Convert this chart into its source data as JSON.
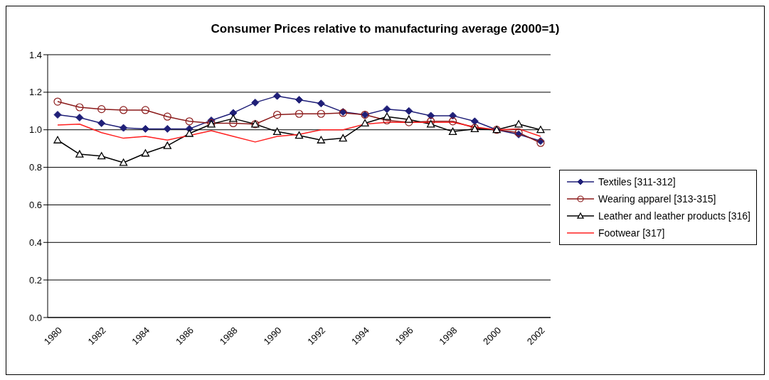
{
  "chart_data": {
    "type": "line",
    "title": "Consumer Prices relative to manufacturing average (2000=1)",
    "categories": [
      "1980",
      null,
      "1982",
      null,
      "1984",
      null,
      "1986",
      null,
      "1988",
      null,
      "1990",
      null,
      "1992",
      null,
      "1994",
      null,
      "1996",
      null,
      "1998",
      null,
      "2000",
      null,
      "2002"
    ],
    "series": [
      {
        "name": "Textiles [311-312]",
        "color": "#1f1f78",
        "marker": "diamond",
        "values": [
          1.08,
          1.065,
          1.035,
          1.01,
          1.005,
          1.005,
          1.005,
          1.05,
          1.09,
          1.145,
          1.18,
          1.16,
          1.14,
          1.095,
          1.08,
          1.11,
          1.1,
          1.075,
          1.075,
          1.045,
          1.0,
          0.975,
          0.94
        ]
      },
      {
        "name": "Wearing apparel [313-315]",
        "color": "#8b1a1a",
        "marker": "circle",
        "values": [
          1.15,
          1.12,
          1.11,
          1.105,
          1.105,
          1.07,
          1.045,
          1.035,
          1.035,
          1.03,
          1.08,
          1.085,
          1.085,
          1.09,
          1.08,
          1.05,
          1.04,
          1.045,
          1.045,
          1.01,
          1.0,
          0.985,
          0.93
        ]
      },
      {
        "name": "Leather and leather products [316]",
        "color": "#000000",
        "marker": "triangle",
        "values": [
          0.945,
          0.87,
          0.86,
          0.825,
          0.875,
          0.915,
          0.98,
          1.03,
          1.06,
          1.03,
          0.99,
          0.97,
          0.945,
          0.955,
          1.035,
          1.07,
          1.055,
          1.03,
          0.99,
          1.005,
          1.0,
          1.03,
          1.0
        ]
      },
      {
        "name": "Footwear [317]",
        "color": "#ff2020",
        "marker": "none",
        "values": [
          1.025,
          1.03,
          0.985,
          0.955,
          0.965,
          0.945,
          0.97,
          0.995,
          0.965,
          0.935,
          0.965,
          0.975,
          1.0,
          1.0,
          1.03,
          1.04,
          1.04,
          1.04,
          1.04,
          1.015,
          1.0,
          1.005,
          0.965
        ]
      }
    ],
    "ylim": [
      0,
      1.4
    ],
    "yticks": [
      {
        "value": 0,
        "label": "0.0"
      },
      {
        "value": 0.2,
        "label": "0.2"
      },
      {
        "value": 0.4,
        "label": "0.4"
      },
      {
        "value": 0.6,
        "label": "0.6"
      },
      {
        "value": 0.8,
        "label": "0.8"
      },
      {
        "value": 1,
        "label": "1.0"
      },
      {
        "value": 1.2,
        "label": "1.2"
      },
      {
        "value": 1.4,
        "label": "1.4"
      }
    ],
    "grid": "y",
    "legend": "right"
  }
}
